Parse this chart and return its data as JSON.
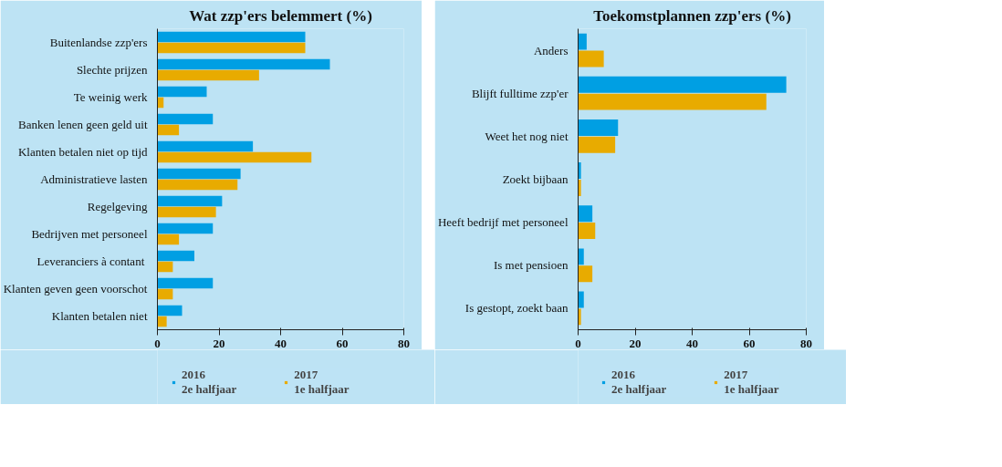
{
  "chart_data": [
    {
      "type": "bar",
      "orientation": "horizontal",
      "title": "Wat zzp'ers belemmert (%)",
      "categories": [
        "Buitenlandse zzp'ers",
        "Slechte prijzen",
        "Te weinig werk",
        "Banken lenen geen geld uit",
        "Klanten betalen niet op tijd",
        "Administratieve lasten",
        "Regelgeving",
        "Bedrijven met personeel",
        "Leveranciers  à contant",
        "Klanten geven geen voorschot",
        "Klanten betalen niet"
      ],
      "series": [
        {
          "name": "2016\n2e halfjaar",
          "color": "#009fe3",
          "values": [
            48,
            56,
            16,
            18,
            31,
            27,
            21,
            18,
            12,
            18,
            8
          ]
        },
        {
          "name": "2017\n1e halfjaar",
          "color": "#e8ab00",
          "values": [
            48,
            33,
            2,
            7,
            50,
            26,
            19,
            7,
            5,
            5,
            3
          ]
        }
      ],
      "xlim": [
        0,
        80
      ],
      "xticks": [
        0,
        20,
        40,
        60,
        80
      ],
      "grid": false,
      "legend": "bottom"
    },
    {
      "type": "bar",
      "orientation": "horizontal",
      "title": "Toekomstplannen zzp'ers (%)",
      "categories": [
        "Anders",
        "Blijft fulltime zzp'er",
        "Weet het nog niet",
        "Zoekt bijbaan",
        "Heeft bedrijf met personeel",
        "Is met pensioen",
        "Is gestopt, zoekt baan"
      ],
      "series": [
        {
          "name": "2016\n2e halfjaar",
          "color": "#009fe3",
          "values": [
            3,
            73,
            14,
            1,
            5,
            2,
            2
          ]
        },
        {
          "name": "2017\n1e halfjaar",
          "color": "#e8ab00",
          "values": [
            9,
            66,
            13,
            1,
            6,
            5,
            1
          ]
        }
      ],
      "xlim": [
        0,
        80
      ],
      "xticks": [
        0,
        20,
        40,
        60,
        80
      ],
      "grid": false,
      "legend": "bottom"
    }
  ]
}
